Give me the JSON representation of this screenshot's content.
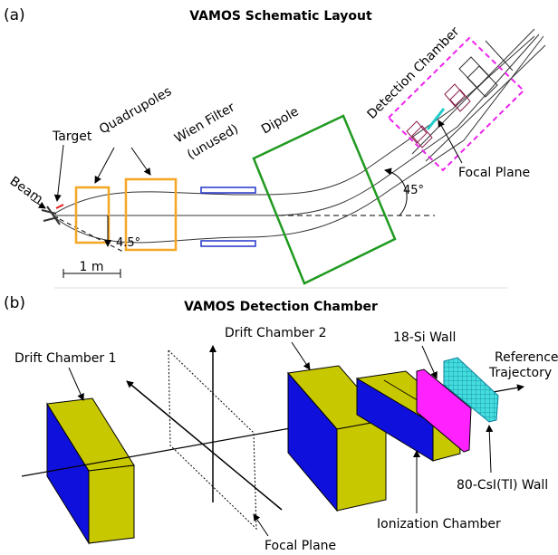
{
  "panel_a": {
    "tag": "(a)",
    "title": "VAMOS Schematic Layout",
    "labels": {
      "target": "Target",
      "quadrupoles": "Quadrupoles",
      "wien_line1": "Wien Filter",
      "wien_line2": "(unused)",
      "dipole": "Dipole",
      "detection_chamber": "Detection Chamber",
      "focal_plane": "Focal Plane",
      "beam": "Beam",
      "angle_small": "4.5°",
      "angle_large": "45°",
      "scale": "1 m"
    }
  },
  "panel_b": {
    "tag": "(b)",
    "title": "VAMOS Detection Chamber",
    "labels": {
      "drift_chamber_1": "Drift Chamber 1",
      "drift_chamber_2": "Drift Chamber 2",
      "si_wall": "18-Si Wall",
      "reference_line1": "Reference",
      "reference_line2": "Trajectory",
      "csi_wall": "80-CsI(Tl) Wall",
      "ionization_chamber": "Ionization Chamber",
      "focal_plane": "Focal Plane"
    }
  },
  "colors": {
    "quadrupole": "#f5a623",
    "dipole": "#1f9a1f",
    "wien": "#2233cc",
    "detection_box": "#ee22ee",
    "focal_plane_a": "#22cccc",
    "chamber_yellow": "#c8c800",
    "chamber_blue": "#1010dd",
    "si_wall": "#ff22ff",
    "csi_wall": "#44dddd"
  }
}
